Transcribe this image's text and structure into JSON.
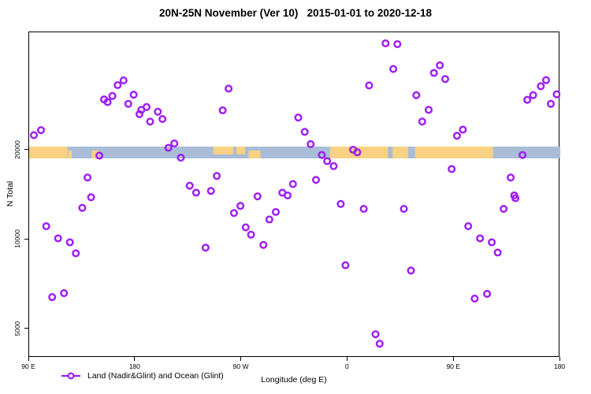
{
  "chart_data": {
    "type": "scatter",
    "title": "20N-25N November (Ver 10)   2015-01-01 to 2020-12-18",
    "xlabel": "Longitude (deg E)",
    "ylabel": "N Total",
    "series_name": "Land (Nadir&Glint) and Ocean (Glint)",
    "point_color": "#A020F0",
    "x_axis": {
      "range": [
        90,
        540
      ],
      "note": "longitude axis wraps eastward: 90E to 180 to 90W to 0 to 90E to 180",
      "ticks": [
        {
          "value": 90,
          "label": "90 E"
        },
        {
          "value": 180,
          "label": "180"
        },
        {
          "value": 270,
          "label": "90 W"
        },
        {
          "value": 360,
          "label": "0"
        },
        {
          "value": 450,
          "label": "90 E"
        },
        {
          "value": 540,
          "label": "180"
        }
      ]
    },
    "y_axis": {
      "scale": "log",
      "range": [
        4000,
        50000
      ],
      "ticks": [
        {
          "value": 5000,
          "label": "5000"
        },
        {
          "value": 10000,
          "label": "10000"
        },
        {
          "value": 20000,
          "label": "20000"
        }
      ]
    },
    "legend": {
      "label": "Land (Nadir&Glint) and Ocean (Glint)",
      "marker": "open-circle-on-line",
      "position": "bottom-left"
    },
    "map_strip": {
      "description": "world coastline band 20N-25N drawn across plot near y=20000",
      "ocean_color": "#a9bdd8",
      "land_color": "#f8d282",
      "land_segments": [
        {
          "from": 90,
          "to": 122.5,
          "part": "full"
        },
        {
          "from": 123,
          "to": 126,
          "part": "bottom"
        },
        {
          "from": 143,
          "to": 149,
          "part": "bottom"
        },
        {
          "from": 246,
          "to": 263,
          "part": "top"
        },
        {
          "from": 265.5,
          "to": 273,
          "part": "top"
        },
        {
          "from": 276,
          "to": 286,
          "part": "bottom"
        },
        {
          "from": 345,
          "to": 394,
          "part": "full"
        },
        {
          "from": 398,
          "to": 411,
          "part": "full"
        },
        {
          "from": 417,
          "to": 483,
          "part": "full"
        }
      ]
    },
    "points": [
      [
        94,
        22500
      ],
      [
        100,
        23400
      ],
      [
        170,
        34400
      ],
      [
        165,
        33200
      ],
      [
        160.5,
        30500
      ],
      [
        153.5,
        29700
      ],
      [
        156.5,
        29100
      ],
      [
        178.5,
        30800
      ],
      [
        174,
        28700
      ],
      [
        185,
        27400
      ],
      [
        189.5,
        28000
      ],
      [
        183.5,
        26500
      ],
      [
        192.5,
        25000
      ],
      [
        199,
        27000
      ],
      [
        203,
        25500
      ],
      [
        208,
        20400
      ],
      [
        213,
        21100
      ],
      [
        218.5,
        18900
      ],
      [
        149.5,
        19200
      ],
      [
        139.5,
        16200
      ],
      [
        226,
        15200
      ],
      [
        231.5,
        14400
      ],
      [
        142.5,
        13900
      ],
      [
        259,
        32300
      ],
      [
        254,
        27300
      ],
      [
        378,
        33100
      ],
      [
        318,
        25800
      ],
      [
        323.5,
        23100
      ],
      [
        328.5,
        21000
      ],
      [
        364.5,
        20100
      ],
      [
        368,
        19700
      ],
      [
        338,
        19300
      ],
      [
        342.5,
        18400
      ],
      [
        348,
        17700
      ],
      [
        249,
        16400
      ],
      [
        244,
        14600
      ],
      [
        313.5,
        15400
      ],
      [
        333,
        15900
      ],
      [
        304.5,
        14400
      ],
      [
        309,
        14100
      ],
      [
        283.5,
        14000
      ],
      [
        392,
        45900
      ],
      [
        402,
        45600
      ],
      [
        398.5,
        37600
      ],
      [
        438,
        38700
      ],
      [
        433,
        36500
      ],
      [
        442.5,
        34800
      ],
      [
        418,
        30700
      ],
      [
        428.5,
        27400
      ],
      [
        423,
        25000
      ],
      [
        457.5,
        23500
      ],
      [
        452.5,
        22400
      ],
      [
        528,
        34500
      ],
      [
        523.5,
        32900
      ],
      [
        517,
        30700
      ],
      [
        512,
        29600
      ],
      [
        537,
        30900
      ],
      [
        532,
        28700
      ],
      [
        508,
        19300
      ],
      [
        448,
        17300
      ],
      [
        498,
        16200
      ],
      [
        501,
        14100
      ],
      [
        135,
        12800
      ],
      [
        104.5,
        11100
      ],
      [
        114.5,
        10100
      ],
      [
        124.5,
        9800
      ],
      [
        129.5,
        9000
      ],
      [
        109.5,
        6400
      ],
      [
        119.5,
        6600
      ],
      [
        239.5,
        9400
      ],
      [
        269,
        13000
      ],
      [
        263.5,
        12300
      ],
      [
        299,
        12400
      ],
      [
        293.5,
        11700
      ],
      [
        273.5,
        11000
      ],
      [
        278,
        10400
      ],
      [
        288.5,
        9600
      ],
      [
        354,
        13200
      ],
      [
        373.5,
        12700
      ],
      [
        358,
        8200
      ],
      [
        383.5,
        4800
      ],
      [
        387,
        4460
      ],
      [
        407.5,
        12700
      ],
      [
        502,
        13800
      ],
      [
        492,
        12700
      ],
      [
        462,
        11100
      ],
      [
        472,
        10100
      ],
      [
        482,
        9800
      ],
      [
        487,
        9050
      ],
      [
        413.5,
        7870
      ],
      [
        478,
        6570
      ],
      [
        467.5,
        6330
      ]
    ]
  }
}
